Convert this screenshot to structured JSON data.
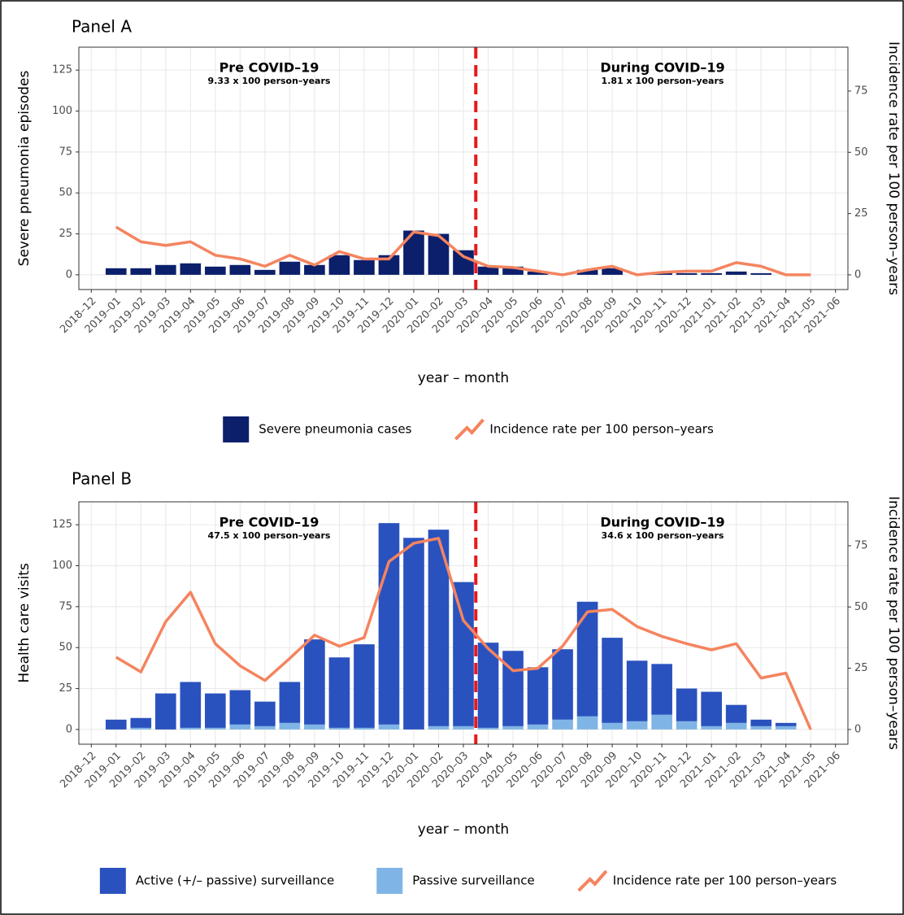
{
  "chart_data": [
    {
      "type": "bar",
      "title": "Panel A",
      "categories": [
        "2018–12",
        "2019–01",
        "2019–02",
        "2019–03",
        "2019–04",
        "2019–05",
        "2019–06",
        "2019–07",
        "2019–08",
        "2019–09",
        "2019–10",
        "2019–11",
        "2019–12",
        "2020–01",
        "2020–02",
        "2020–03",
        "2020–04",
        "2020–05",
        "2020–06",
        "2020–07",
        "2020–08",
        "2020–09",
        "2020–10",
        "2020–11",
        "2020–12",
        "2021–01",
        "2021–02",
        "2021–03",
        "2021–04",
        "2021–05",
        "2021–06"
      ],
      "x_label": "year – month",
      "y_label": "Severe pneumonia episodes",
      "y2_label": "Incidence rate per 100 person–years",
      "ylim": [
        -9,
        139
      ],
      "yticks": [
        0,
        25,
        50,
        75,
        100,
        125
      ],
      "y2lim": [
        -6,
        92.9
      ],
      "y2ticks": [
        0,
        25,
        50,
        75
      ],
      "grid": true,
      "legend": "bottom",
      "annotations": [
        {
          "title": "Pre COVID–19",
          "subtitle": "9.33 x 100 person–years"
        },
        {
          "title": "During COVID–19",
          "subtitle": "1.81 x 100 person–years"
        }
      ],
      "series": [
        {
          "name": "Severe pneumonia cases",
          "type": "bar",
          "color": "#0b1f6b",
          "values": [
            null,
            4,
            4,
            6,
            7,
            5,
            6,
            3,
            8,
            6,
            12,
            9,
            12,
            27,
            25,
            15,
            5,
            5,
            2,
            0,
            3,
            4,
            0,
            1,
            1,
            1,
            2,
            1,
            0,
            0,
            null
          ]
        },
        {
          "name": "Incidence rate per 100 person–years",
          "type": "line",
          "axis": "y2",
          "color": "#f4845f",
          "values": [
            null,
            19.5,
            13.5,
            12,
            13.5,
            8,
            6.5,
            3.5,
            8,
            4,
            9.5,
            6.5,
            6.5,
            17.5,
            16,
            7.5,
            3.5,
            3,
            1.5,
            0,
            2,
            3.5,
            0,
            1,
            1.5,
            1.5,
            5,
            3.5,
            0,
            0,
            null
          ]
        }
      ]
    },
    {
      "type": "bar",
      "title": "Panel B",
      "stacked": true,
      "categories": [
        "2018–12",
        "2019–01",
        "2019–02",
        "2019–03",
        "2019–04",
        "2019–05",
        "2019–06",
        "2019–07",
        "2019–08",
        "2019–09",
        "2019–10",
        "2019–11",
        "2019–12",
        "2020–01",
        "2020–02",
        "2020–03",
        "2020–04",
        "2020–05",
        "2020–06",
        "2020–07",
        "2020–08",
        "2020–09",
        "2020–10",
        "2020–11",
        "2020–12",
        "2021–01",
        "2021–02",
        "2021–03",
        "2021–04",
        "2021–05",
        "2021–06"
      ],
      "x_label": "year – month",
      "y_label": "Health care visits",
      "y2_label": "Incidence rate per 100 person–years",
      "ylim": [
        -9,
        139
      ],
      "yticks": [
        0,
        25,
        50,
        75,
        100,
        125
      ],
      "y2lim": [
        -6,
        92.9
      ],
      "y2ticks": [
        0,
        25,
        50,
        75
      ],
      "grid": true,
      "legend": "bottom",
      "annotations": [
        {
          "title": "Pre COVID–19",
          "subtitle": "47.5 x 100 person–years"
        },
        {
          "title": "During COVID–19",
          "subtitle": "34.6 x 100 person–years"
        }
      ],
      "series": [
        {
          "name": "Active (+/– passive) surveillance",
          "type": "bar",
          "color": "#2a52be",
          "values": [
            null,
            6,
            6,
            22,
            28,
            21,
            21,
            15,
            25,
            52,
            43,
            51,
            123,
            117,
            120,
            88,
            52,
            46,
            35,
            43,
            70,
            52,
            37,
            31,
            20,
            21,
            11,
            4,
            2,
            0,
            null
          ]
        },
        {
          "name": "Passive surveillance",
          "type": "bar",
          "color": "#7fb5e6",
          "values": [
            null,
            0,
            1,
            0,
            1,
            1,
            3,
            2,
            4,
            3,
            1,
            1,
            3,
            0,
            2,
            2,
            1,
            2,
            3,
            6,
            8,
            4,
            5,
            9,
            5,
            2,
            4,
            2,
            2,
            0,
            null
          ]
        },
        {
          "name": "Incidence rate per 100 person–years",
          "type": "line",
          "axis": "y2",
          "color": "#f4845f",
          "values": [
            null,
            29.5,
            23.5,
            44,
            56,
            35,
            26,
            20,
            29,
            38.5,
            34,
            37.5,
            68.5,
            76,
            78,
            44.5,
            33,
            24,
            25,
            34,
            48,
            49,
            42,
            38,
            35,
            32.5,
            35,
            21,
            23,
            0,
            null
          ]
        }
      ]
    }
  ]
}
